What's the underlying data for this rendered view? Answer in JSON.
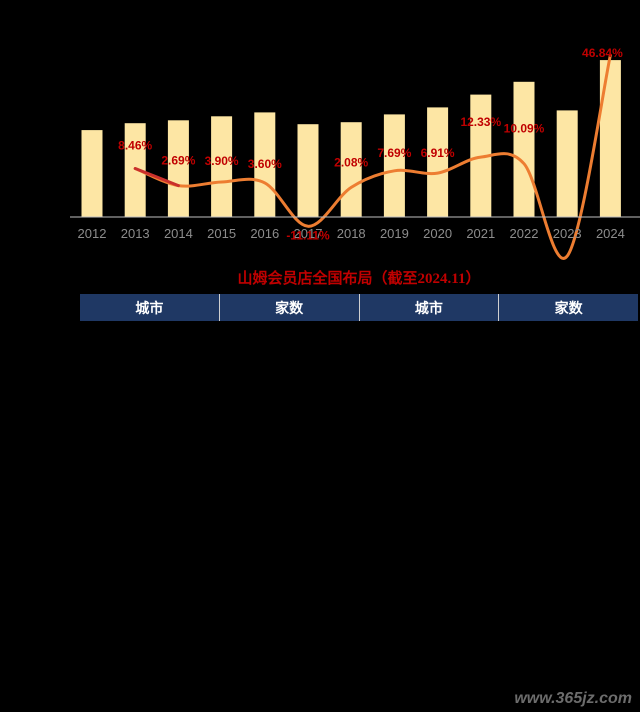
{
  "chart_data": {
    "type": "bar",
    "categories": [
      "2012",
      "2013",
      "2014",
      "2015",
      "2016",
      "2017",
      "2018",
      "2019",
      "2020",
      "2021",
      "2022",
      "2023",
      "2024"
    ],
    "series": [
      {
        "values": [
          88,
          95,
          98,
          102,
          106,
          94,
          96,
          104,
          111,
          124,
          137,
          108,
          159
        ]
      },
      {
        "type": "line",
        "values": [
          null,
          8.46,
          2.69,
          3.9,
          3.6,
          -11.11,
          2.08,
          7.69,
          6.91,
          12.33,
          10.09,
          -21.18,
          46.84
        ],
        "labels": [
          "",
          "8.46%",
          "2.69%",
          "3.90%",
          "3.60%",
          "-11.11%",
          "2.08%",
          "7.69%",
          "6.91%",
          "12.33%",
          "10.09%",
          "-21.18%",
          "46.84%"
        ]
      }
    ],
    "colors": {
      "bar": "#fde6a4",
      "line": "#ed7d31",
      "line_start": "#c9302c",
      "label": "#c00000"
    },
    "grid": false
  },
  "table": {
    "title": "山姆会员店全国布局（截至2024.11）",
    "headers": [
      "城市",
      "家数",
      "城市",
      "家数"
    ],
    "header_bg": "#1f3864"
  },
  "watermark": "www.365jz.com"
}
